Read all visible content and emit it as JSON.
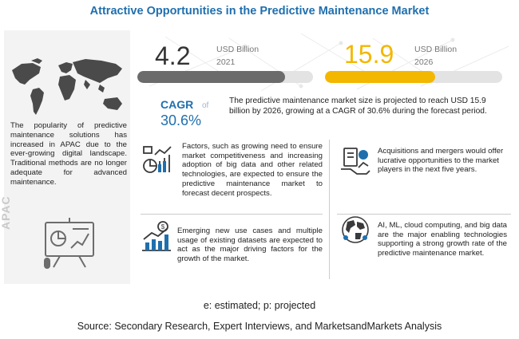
{
  "title": "Attractive Opportunities in the Predictive Maintenance Market",
  "left_panel": {
    "description": "The popularity of predictive maintenance solutions has increased in APAC due to the ever-growing digital landscape. Traditional methods are no longer adequate for advanced maintenance.",
    "region_label": "APAC"
  },
  "market": {
    "value_2021": "4.2",
    "unit_2021": "USD Billion",
    "year_2021": "2021",
    "value_2026": "15.9",
    "unit_2026": "USD Billion",
    "year_2026": "2026",
    "bar_2021_fill_fraction": 0.84,
    "bar_2026_fill_fraction": 0.62,
    "bar_2021_color": "#6b6b6b",
    "bar_2026_color": "#f3b700",
    "track_color": "#e3e3e3"
  },
  "cagr": {
    "label": "CAGR",
    "of_text": "of",
    "value": "30.6%"
  },
  "summary": "The predictive maintenance market size is projected to reach USD 15.9 billion by 2026, growing at a CAGR of 30.6% during the forecast period.",
  "blocks": {
    "factors": "Factors, such as growing need to ensure market competitiveness and increasing adoption of big data and other related technologies, are expected to ensure the predictive maintenance market to forecast decent prospects.",
    "use_cases": "Emerging new use cases and multiple usage of existing datasets are expected to act as the major driving factors for the growth of the market.",
    "acquisitions": "Acquisitions and mergers would offer lucrative opportunities to the market players in the next five years.",
    "ai_ml": "AI, ML, cloud computing, and big data are the major enabling technologies supporting a strong growth rate of the predictive maintenance market."
  },
  "icons": [
    "world-map-icon",
    "analytics-board-icon",
    "factors-icon",
    "growth-chart-icon",
    "acquisition-icon",
    "globe-network-icon"
  ],
  "accent_color": "#1f6fae",
  "footnote": "e: estimated; p: projected",
  "source": "Source: Secondary Research, Expert Interviews, and MarketsandMarkets Analysis"
}
